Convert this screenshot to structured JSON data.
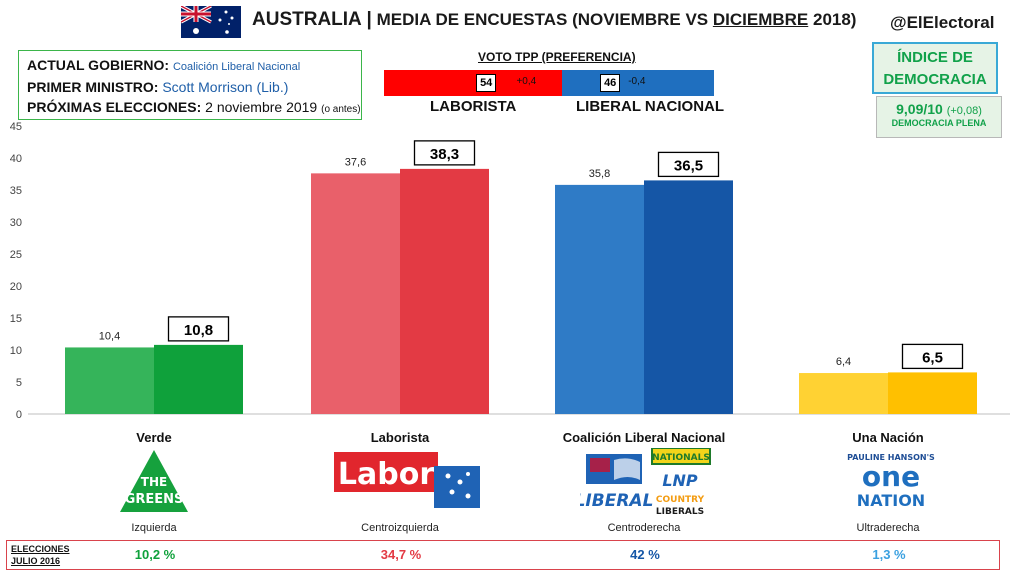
{
  "header": {
    "country": "AUSTRALIA",
    "separator": "|",
    "subtitle": "MEDIA DE ENCUESTAS",
    "period_open": "(NOVIEMBRE VS ",
    "period_end": "DICIEMBRE",
    "period_close": " 2018)",
    "handle": "@ElElectoral"
  },
  "government": {
    "gov_label": "ACTUAL GOBIERNO:",
    "gov_value": "Coalición Liberal Nacional",
    "pm_label": "PRIMER MINISTRO:",
    "pm_value": "Scott Morrison (Lib.)",
    "next_label": "PRÓXIMAS ELECCIONES:",
    "next_value": "2 noviembre 2019",
    "next_note": "(o antes)"
  },
  "tpp": {
    "title": "VOTO TPP (PREFERENCIA)",
    "left_value": "54",
    "left_share": 54,
    "left_delta": "+0,4",
    "left_label": "LABORISTA",
    "right_value": "46",
    "right_share": 46,
    "right_delta": "-0,4",
    "right_label": "LIBERAL NACIONAL"
  },
  "democracy": {
    "title_line1": "ÍNDICE DE",
    "title_line2": "DEMOCRACIA",
    "score": "9,09/10",
    "delta": "(+0,08)",
    "category": "DEMOCRACIA PLENA"
  },
  "chart_data": {
    "type": "bar",
    "categories": [
      "Verde",
      "Laborista",
      "Coalición Liberal Nacional",
      "Una Nación"
    ],
    "series": [
      {
        "values": [
          10.4,
          37.6,
          35.8,
          6.4
        ]
      },
      {
        "values": [
          10.8,
          38.3,
          36.5,
          6.5
        ]
      }
    ],
    "value_labels_prev": [
      "10,4",
      "37,6",
      "35,8",
      "6,4"
    ],
    "value_labels_curr": [
      "10,8",
      "38,3",
      "36,5",
      "6,5"
    ],
    "ylim": [
      0,
      45
    ],
    "yticks": [
      0,
      5,
      10,
      15,
      20,
      25,
      30,
      35,
      40,
      45
    ],
    "colors_prev": [
      "#35b45a",
      "#e9606a",
      "#2f7bc6",
      "#ffd233"
    ],
    "colors_curr": [
      "#0fa13b",
      "#e33a44",
      "#1556a6",
      "#ffc000"
    ],
    "grid": false,
    "legend": "none"
  },
  "parties": [
    {
      "name": "Verde",
      "ideology": "Izquierda",
      "logo": "greens-logo",
      "logo_text_1": "THE",
      "logo_text_2": "GREENS"
    },
    {
      "name": "Laborista",
      "ideology": "Centroizquierda",
      "logo": "labor-logo",
      "logo_text_1": "Labor"
    },
    {
      "name": "Coalición Liberal Nacional",
      "ideology": "Centroderecha",
      "logo": "coalition-logos",
      "logo_text_1": "LIBERAL",
      "logo_text_2": "NATIONALS",
      "logo_text_3": "LNP",
      "logo_text_4": "COUNTRY",
      "logo_text_5": "LIBERALS"
    },
    {
      "name": "Una Nación",
      "ideology": "Ultraderecha",
      "logo": "one-nation-logo",
      "logo_text_1": "PAULINE HANSON'S",
      "logo_text_2": "one",
      "logo_text_3": "NATION"
    }
  ],
  "elections_2016": {
    "label_line1": "ELECCIONES",
    "label_line2": "JULIO 2016",
    "values": [
      "10,2 %",
      "34,7 %",
      "42 %",
      "1,3 %"
    ],
    "colors": [
      "#0fa13b",
      "#e33a44",
      "#1556a6",
      "#3aa0e0"
    ]
  }
}
